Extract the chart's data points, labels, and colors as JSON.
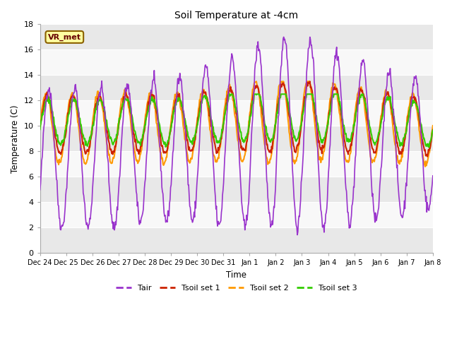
{
  "title": "Soil Temperature at -4cm",
  "xlabel": "Time",
  "ylabel": "Temperature (C)",
  "ylim": [
    0,
    18
  ],
  "background_color": "#ffffff",
  "plot_bg_color": "#f0f0f0",
  "line_colors": {
    "Tair": "#9933cc",
    "Tsoil set 1": "#cc2200",
    "Tsoil set 2": "#ff9900",
    "Tsoil set 3": "#33cc00"
  },
  "legend_label": "VR_met",
  "xticklabels": [
    "Dec 24",
    "Dec 25",
    "Dec 26",
    "Dec 27",
    "Dec 28",
    "Dec 29",
    "Dec 30",
    "Dec 31",
    "Jan 1",
    "Jan 2",
    "Jan 3",
    "Jan 4",
    "Jan 5",
    "Jan 6",
    "Jan 7",
    "Jan 8"
  ],
  "grid_color": "#ffffff",
  "stripe_colors": [
    "#e8e8e8",
    "#f8f8f8"
  ]
}
